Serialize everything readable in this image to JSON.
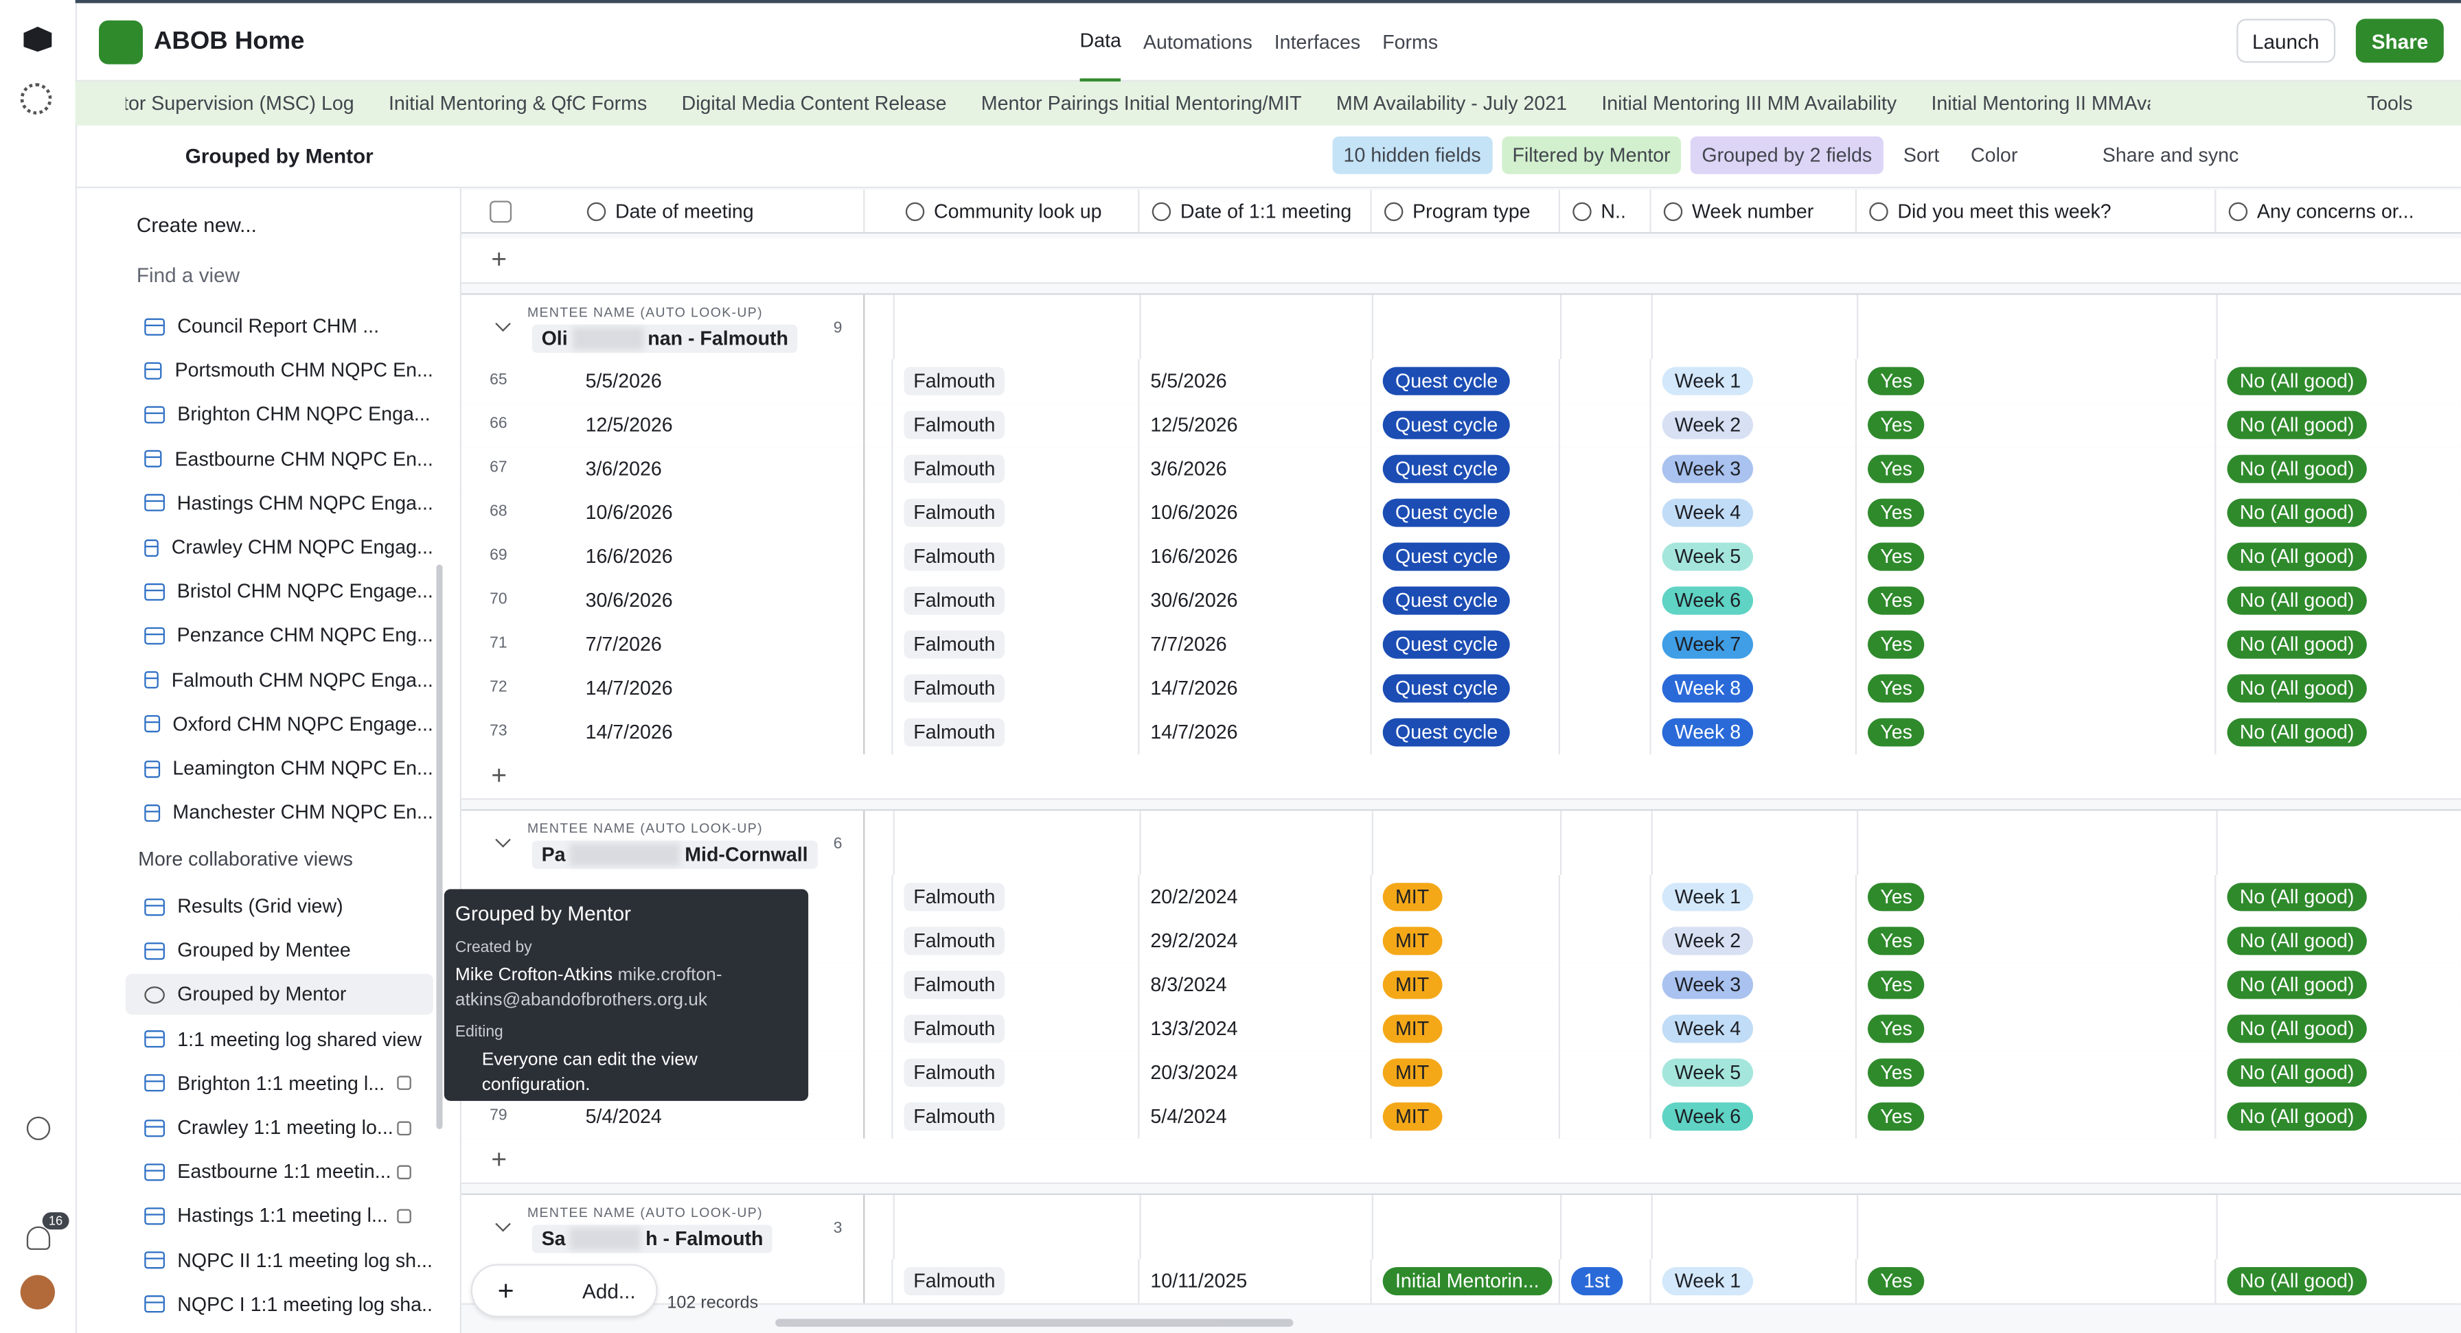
{
  "header": {
    "base_name": "ABOB Home",
    "tabs": [
      "Data",
      "Automations",
      "Interfaces",
      "Forms"
    ],
    "launch": "Launch",
    "share": "Share",
    "notification_count": "16"
  },
  "tables_bar": {
    "tables": [
      "Mentor Supervision (MSC) Log",
      "Initial Mentoring & QfC Forms",
      "Digital Media Content Release",
      "Mentor Pairings Initial Mentoring/MIT",
      "MM Availability - July 2021",
      "Initial Mentoring III MM Availability",
      "Initial Mentoring II MMAvailability"
    ],
    "tools": "Tools"
  },
  "view_bar": {
    "view_name": "Grouped by Mentor",
    "hidden_fields": "10 hidden fields",
    "filter": "Filtered by Mentor",
    "group": "Grouped by 2 fields",
    "sort": "Sort",
    "color": "Color",
    "share_sync": "Share and sync"
  },
  "sidebar": {
    "create": "Create new...",
    "find": "Find a view",
    "views": [
      "Council Report CHM ...",
      "Portsmouth CHM NQPC En...",
      "Brighton CHM NQPC Enga...",
      "Eastbourne CHM NQPC En...",
      "Hastings CHM NQPC Enga...",
      "Crawley CHM NQPC Engag...",
      "Bristol CHM NQPC Engage...",
      "Penzance CHM NQPC Eng...",
      "Falmouth CHM NQPC Enga...",
      "Oxford CHM NQPC Engage...",
      "Leamington CHM NQPC En...",
      "Manchester CHM NQPC En..."
    ],
    "section": "More collaborative views",
    "collab_views": [
      {
        "name": "Results (Grid view)",
        "locked": false
      },
      {
        "name": "Grouped by Mentee",
        "locked": false
      },
      {
        "name": "Grouped by Mentor",
        "locked": false,
        "selected": true
      },
      {
        "name": "1:1 meeting log shared view",
        "locked": false
      },
      {
        "name": "Brighton 1:1 meeting l...",
        "locked": true
      },
      {
        "name": "Crawley 1:1 meeting lo...",
        "locked": true
      },
      {
        "name": "Eastbourne 1:1 meetin...",
        "locked": true
      },
      {
        "name": "Hastings 1:1 meeting l...",
        "locked": true
      },
      {
        "name": "NQPC II 1:1 meeting log sh...",
        "locked": false
      },
      {
        "name": "NQPC I 1:1 meeting log sha...",
        "locked": false
      }
    ]
  },
  "tooltip": {
    "title": "Grouped by Mentor",
    "created_label": "Created by",
    "creator": "Mike Crofton-Atkins",
    "email": "mike.crofton-atkins@abandofbrothers.org.uk",
    "editing_label": "Editing",
    "editing": "Everyone can edit the view configuration."
  },
  "grid": {
    "columns": [
      "Date of meeting",
      "Community look up",
      "Date of 1:1 meeting",
      "Program type",
      "N..",
      "Week number",
      "Did you meet this week?",
      "Any concerns or..."
    ],
    "pill_colors": {
      "Quest cycle": {
        "bg": "#1c4db4",
        "fg": "#fff"
      },
      "MIT": {
        "bg": "#f4a818",
        "fg": "#1d1f25"
      },
      "Initial Mentorin...": {
        "bg": "#2f8a2c",
        "fg": "#fff"
      },
      "1st": {
        "bg": "#2a6ad8",
        "fg": "#fff"
      },
      "Week 1": {
        "bg": "#d3e8fa",
        "fg": "#1d1f25"
      },
      "Week 2": {
        "bg": "#d8e1f3",
        "fg": "#1d1f25"
      },
      "Week 3": {
        "bg": "#a9c2ef",
        "fg": "#1d1f25"
      },
      "Week 4": {
        "bg": "#c1dcf6",
        "fg": "#1d1f25"
      },
      "Week 5": {
        "bg": "#a5e6dc",
        "fg": "#1d1f25"
      },
      "Week 6": {
        "bg": "#5fd3c4",
        "fg": "#1d1f25"
      },
      "Week 7": {
        "bg": "#3f9ee6",
        "fg": "#1d1f25"
      },
      "Week 8": {
        "bg": "#2a6ad8",
        "fg": "#fff"
      },
      "Yes": {
        "bg": "#2f8a2c",
        "fg": "#fff"
      },
      "No (All good)": {
        "bg": "#2f8a2c",
        "fg": "#fff"
      }
    },
    "group_label": "MENTEE NAME (AUTO LOOK-UP)",
    "groups": [
      {
        "name_start": "Oli",
        "name_end": "nan - Falmouth",
        "count": 9,
        "rows": [
          [
            65,
            "5/5/2026",
            "Falmouth",
            "5/5/2026",
            "Quest cycle",
            null,
            "Week 1",
            "Yes",
            "No (All good)"
          ],
          [
            66,
            "12/5/2026",
            "Falmouth",
            "12/5/2026",
            "Quest cycle",
            null,
            "Week 2",
            "Yes",
            "No (All good)"
          ],
          [
            67,
            "3/6/2026",
            "Falmouth",
            "3/6/2026",
            "Quest cycle",
            null,
            "Week 3",
            "Yes",
            "No (All good)"
          ],
          [
            68,
            "10/6/2026",
            "Falmouth",
            "10/6/2026",
            "Quest cycle",
            null,
            "Week 4",
            "Yes",
            "No (All good)"
          ],
          [
            69,
            "16/6/2026",
            "Falmouth",
            "16/6/2026",
            "Quest cycle",
            null,
            "Week 5",
            "Yes",
            "No (All good)"
          ],
          [
            70,
            "30/6/2026",
            "Falmouth",
            "30/6/2026",
            "Quest cycle",
            null,
            "Week 6",
            "Yes",
            "No (All good)"
          ],
          [
            71,
            "7/7/2026",
            "Falmouth",
            "7/7/2026",
            "Quest cycle",
            null,
            "Week 7",
            "Yes",
            "No (All good)"
          ],
          [
            72,
            "14/7/2026",
            "Falmouth",
            "14/7/2026",
            "Quest cycle",
            null,
            "Week 8",
            "Yes",
            "No (All good)"
          ],
          [
            73,
            "14/7/2026",
            "Falmouth",
            "14/7/2026",
            "Quest cycle",
            null,
            "Week 8",
            "Yes",
            "No (All good)"
          ]
        ]
      },
      {
        "name_start": "Pa",
        "name_end": "Mid-Cornwall",
        "count": 6,
        "rows": [
          [
            null,
            null,
            "Falmouth",
            "20/2/2024",
            "MIT",
            null,
            "Week 1",
            "Yes",
            "No (All good)"
          ],
          [
            null,
            null,
            "Falmouth",
            "29/2/2024",
            "MIT",
            null,
            "Week 2",
            "Yes",
            "No (All good)"
          ],
          [
            null,
            null,
            "Falmouth",
            "8/3/2024",
            "MIT",
            null,
            "Week 3",
            "Yes",
            "No (All good)"
          ],
          [
            null,
            null,
            "Falmouth",
            "13/3/2024",
            "MIT",
            null,
            "Week 4",
            "Yes",
            "No (All good)"
          ],
          [
            null,
            null,
            "Falmouth",
            "20/3/2024",
            "MIT",
            null,
            "Week 5",
            "Yes",
            "No (All good)"
          ],
          [
            79,
            "5/4/2024",
            "Falmouth",
            "5/4/2024",
            "MIT",
            null,
            "Week 6",
            "Yes",
            "No (All good)"
          ]
        ]
      },
      {
        "name_start": "Sa",
        "name_end": "h - Falmouth",
        "count": 3,
        "rows": [
          [
            null,
            null,
            "Falmouth",
            "10/11/2025",
            "Initial Mentorin...",
            "1st",
            "Week 1",
            "Yes",
            "No (All good)"
          ]
        ]
      }
    ]
  },
  "footer": {
    "add": "Add...",
    "records": "102 records"
  }
}
